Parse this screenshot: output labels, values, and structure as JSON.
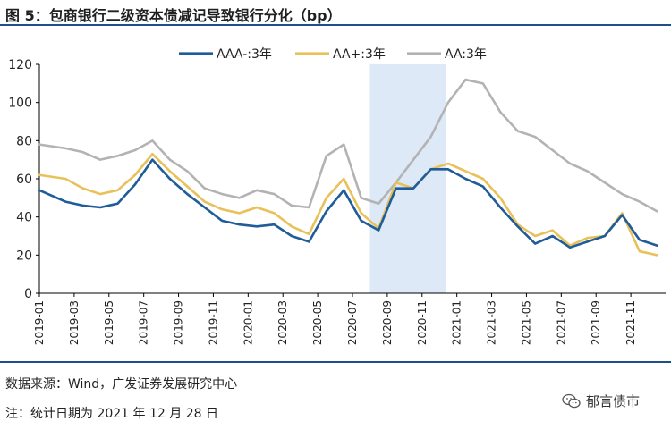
{
  "header": {
    "title": "图 5：包商银行二级资本债减记导致银行分化（bp）"
  },
  "footer": {
    "source": "数据来源：Wind，广发证券发展研究中心",
    "note": "注：统计日期为 2021 年 12 月 28 日",
    "watermark": "郁言债市"
  },
  "chart_data": {
    "type": "line",
    "title": "包商银行二级资本债减记导致银行分化（bp）",
    "xlabel": "",
    "ylabel": "",
    "ylim": [
      0,
      120
    ],
    "yticks": [
      0,
      20,
      40,
      60,
      80,
      100,
      120
    ],
    "x_ticks": [
      "2019-01",
      "2019-03",
      "2019-05",
      "2019-07",
      "2019-09",
      "2019-11",
      "2020-01",
      "2020-03",
      "2020-05",
      "2020-07",
      "2020-09",
      "2020-11",
      "2021-01",
      "2021-03",
      "2021-05",
      "2021-07",
      "2021-09",
      "2021-11"
    ],
    "legend_position": "top",
    "highlight_region": {
      "from": "2020-08",
      "to": "2020-12",
      "color": "#dde9f7"
    },
    "series": [
      {
        "name": "AAA-:3年",
        "color": "#1f5c99",
        "x": [
          "2019-01",
          "2019-02",
          "2019-03",
          "2019-04",
          "2019-05",
          "2019-06",
          "2019-07",
          "2019-08",
          "2019-09",
          "2019-10",
          "2019-11",
          "2019-12",
          "2020-01",
          "2020-02",
          "2020-03",
          "2020-04",
          "2020-05",
          "2020-06",
          "2020-07",
          "2020-08",
          "2020-09",
          "2020-10",
          "2020-11",
          "2020-12",
          "2021-01",
          "2021-02",
          "2021-03",
          "2021-04",
          "2021-05",
          "2021-06",
          "2021-07",
          "2021-08",
          "2021-09",
          "2021-10",
          "2021-11",
          "2021-12"
        ],
        "values": [
          54,
          48,
          46,
          45,
          47,
          57,
          70,
          60,
          52,
          45,
          38,
          36,
          35,
          36,
          30,
          27,
          43,
          54,
          38,
          33,
          55,
          55,
          65,
          65,
          60,
          56,
          45,
          35,
          26,
          30,
          24,
          27,
          30,
          41,
          28,
          25
        ]
      },
      {
        "name": "AA+:3年",
        "color": "#e8c15b",
        "x": [
          "2019-01",
          "2019-02",
          "2019-03",
          "2019-04",
          "2019-05",
          "2019-06",
          "2019-07",
          "2019-08",
          "2019-09",
          "2019-10",
          "2019-11",
          "2019-12",
          "2020-01",
          "2020-02",
          "2020-03",
          "2020-04",
          "2020-05",
          "2020-06",
          "2020-07",
          "2020-08",
          "2020-09",
          "2020-10",
          "2020-11",
          "2020-12",
          "2021-01",
          "2021-02",
          "2021-03",
          "2021-04",
          "2021-05",
          "2021-06",
          "2021-07",
          "2021-08",
          "2021-09",
          "2021-10",
          "2021-11",
          "2021-12"
        ],
        "values": [
          62,
          60,
          55,
          52,
          54,
          62,
          73,
          64,
          56,
          48,
          44,
          42,
          45,
          42,
          35,
          31,
          50,
          60,
          42,
          34,
          58,
          55,
          65,
          68,
          64,
          60,
          50,
          36,
          30,
          33,
          25,
          29,
          30,
          42,
          22,
          20
        ]
      },
      {
        "name": "AA:3年",
        "color": "#b3b3b3",
        "x": [
          "2019-01",
          "2019-02",
          "2019-03",
          "2019-04",
          "2019-05",
          "2019-06",
          "2019-07",
          "2019-08",
          "2019-09",
          "2019-10",
          "2019-11",
          "2019-12",
          "2020-01",
          "2020-02",
          "2020-03",
          "2020-04",
          "2020-05",
          "2020-06",
          "2020-07",
          "2020-08",
          "2020-09",
          "2020-10",
          "2020-11",
          "2020-12",
          "2021-01",
          "2021-02",
          "2021-03",
          "2021-04",
          "2021-05",
          "2021-06",
          "2021-07",
          "2021-08",
          "2021-09",
          "2021-10",
          "2021-11",
          "2021-12"
        ],
        "values": [
          78,
          76,
          74,
          70,
          72,
          75,
          80,
          70,
          64,
          55,
          52,
          50,
          54,
          52,
          46,
          45,
          72,
          78,
          50,
          47,
          58,
          70,
          82,
          100,
          112,
          110,
          95,
          85,
          82,
          75,
          68,
          64,
          58,
          52,
          48,
          43
        ]
      }
    ]
  },
  "colors": {
    "rule": "#1e4f8c",
    "axis": "#000000",
    "highlight": "#dde9f7"
  }
}
